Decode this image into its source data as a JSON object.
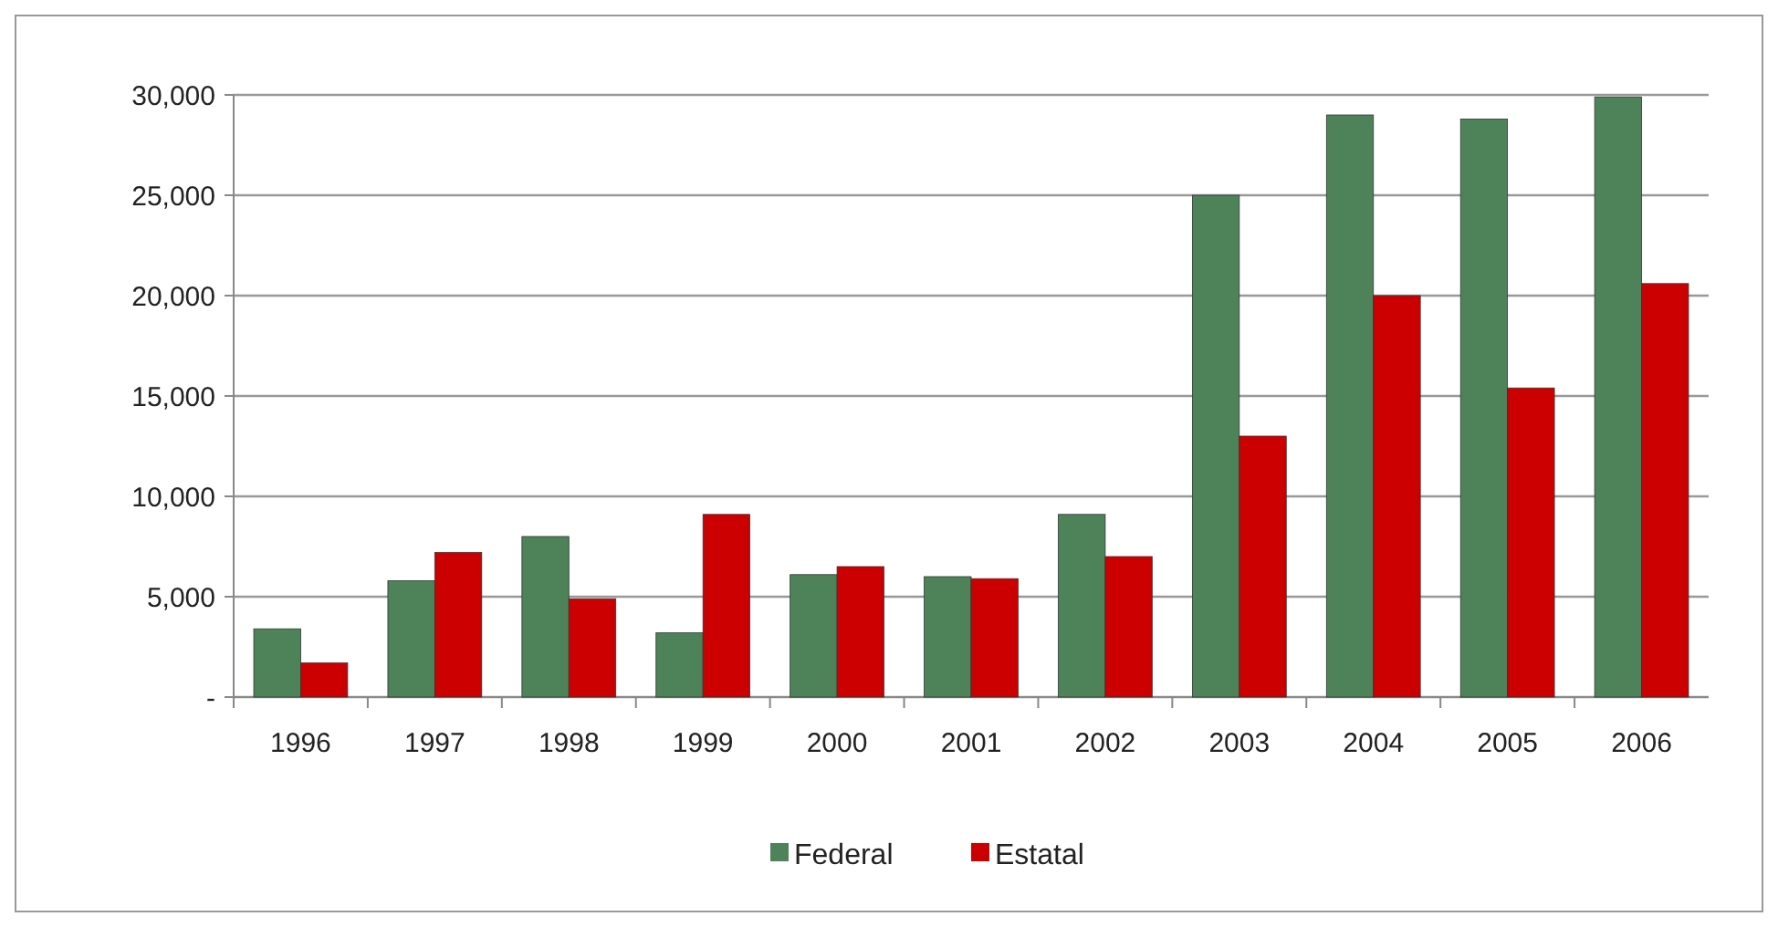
{
  "chart_data": {
    "type": "bar",
    "categories": [
      "1996",
      "1997",
      "1998",
      "1999",
      "2000",
      "2001",
      "2002",
      "2003",
      "2004",
      "2005",
      "2006"
    ],
    "series": [
      {
        "name": "Federal",
        "color": "#4e8259",
        "values": [
          3400,
          5800,
          8000,
          3200,
          6100,
          6000,
          9100,
          25000,
          29000,
          28800,
          29900
        ]
      },
      {
        "name": "Estatal",
        "color": "#cc0000",
        "values": [
          1700,
          7200,
          4900,
          9100,
          6500,
          5900,
          7000,
          13000,
          20000,
          15400,
          20600
        ]
      }
    ],
    "ylim": [
      0,
      30000
    ],
    "yticks": [
      {
        "value": 0,
        "label": "-"
      },
      {
        "value": 5000,
        "label": "5,000"
      },
      {
        "value": 10000,
        "label": "10,000"
      },
      {
        "value": 15000,
        "label": "15,000"
      },
      {
        "value": 20000,
        "label": "20,000"
      },
      {
        "value": 25000,
        "label": "25,000"
      },
      {
        "value": 30000,
        "label": "30,000"
      }
    ],
    "grid": "y",
    "legend": "bottom"
  }
}
